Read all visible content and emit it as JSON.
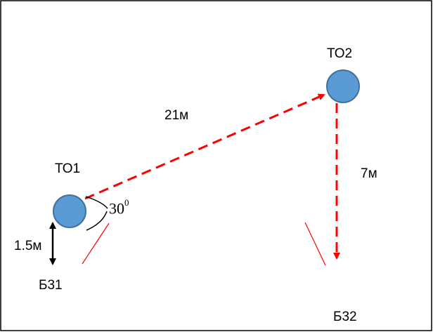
{
  "diagram": {
    "nodes": [
      {
        "id": "to1",
        "label": "ТО1"
      },
      {
        "id": "to2",
        "label": "ТО2"
      }
    ],
    "distances": {
      "to1_to2": "21м",
      "to2_down": "7м",
      "to1_vertical": "1.5м"
    },
    "angle": {
      "value": "30",
      "sup": "0"
    },
    "markers": {
      "b31": "Б31",
      "b32": "Б32"
    },
    "colors": {
      "node_fill": "#5b9bd5",
      "node_stroke": "#41719c",
      "arrow": "#ff0000",
      "frame": "#000000"
    }
  }
}
